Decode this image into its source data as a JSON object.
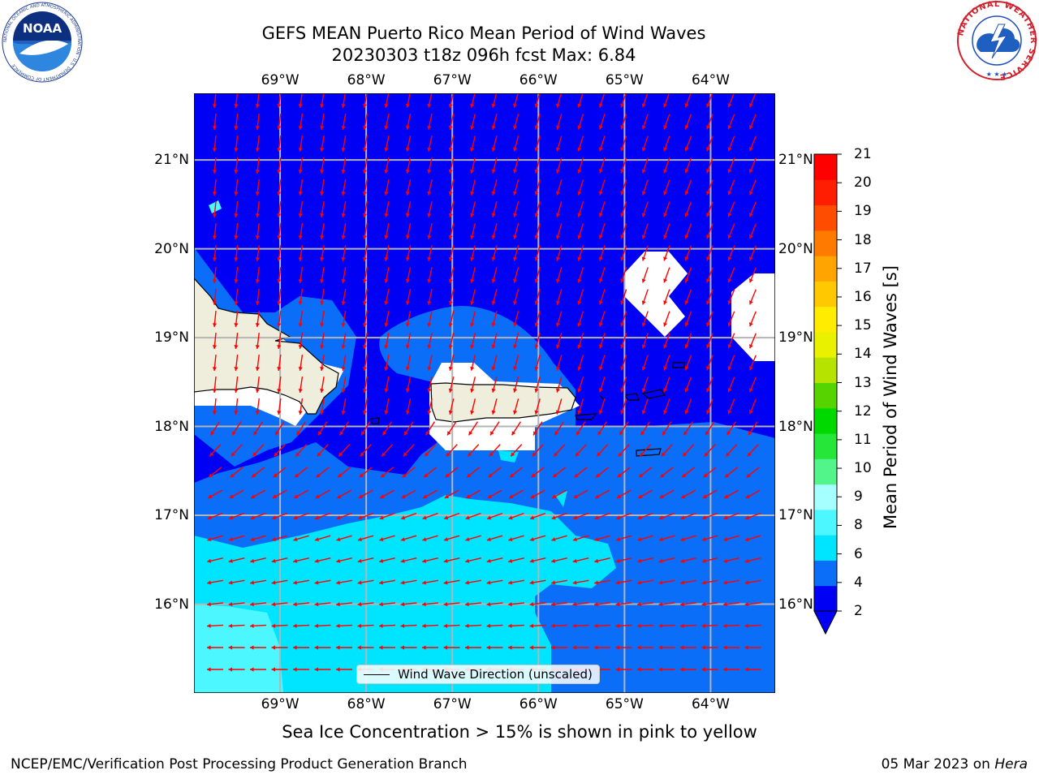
{
  "title": {
    "line1": "GEFS MEAN Puerto Rico Mean Period of Wind Waves",
    "line2": "20230303 t18z 096h fcst   Max: 6.84"
  },
  "axes": {
    "lon_labels": [
      "69°W",
      "68°W",
      "67°W",
      "66°W",
      "65°W",
      "64°W"
    ],
    "lat_labels": [
      "21°N",
      "20°N",
      "19°N",
      "18°N",
      "17°N",
      "16°N"
    ],
    "lon_values": [
      -69,
      -68,
      -67,
      -66,
      -65,
      -64
    ],
    "lat_values": [
      21,
      20,
      19,
      18,
      17,
      16
    ],
    "lon_range": [
      -70.0,
      -63.25
    ],
    "lat_range": [
      15.0,
      21.75
    ]
  },
  "colorbar": {
    "title": "Mean Period of Wind Waves [s]",
    "tick_labels": [
      "2",
      "4",
      "6",
      "8",
      "9",
      "10",
      "11",
      "12",
      "13",
      "14",
      "15",
      "16",
      "17",
      "18",
      "19",
      "20",
      "21"
    ],
    "colors": [
      "#0000f5",
      "#0a6ef8",
      "#00e5ff",
      "#4cf7ff",
      "#a6ffff",
      "#52f58a",
      "#26e63a",
      "#00d900",
      "#56d400",
      "#b6e400",
      "#e9f000",
      "#ffec00",
      "#ffc800",
      "#ffa400",
      "#ff7a00",
      "#ff4d00",
      "#ff1e00",
      "#ff0000"
    ]
  },
  "legend": {
    "label": "Wind Wave Direction (unscaled)"
  },
  "caption": "Sea Ice Concentration > 15% is shown in pink to yellow",
  "footer": {
    "left": "NCEP/EMC/Verification Post Processing Product Generation Branch",
    "right_date": "05 Mar 2023 on ",
    "right_machine": "Hera"
  },
  "logos": {
    "left": "NOAA",
    "left_ring": "NATIONAL OCEANIC AND ATMOSPHERIC ADMINISTRATION · U.S. DEPARTMENT OF COMMERCE",
    "right_ring": "NATIONAL WEATHER SERVICE"
  },
  "colors": {
    "deep_blue": "#0000f5",
    "mid_blue": "#0a6ef8",
    "cyan": "#00e5ff",
    "light_cyan": "#4cf7ff",
    "land": "#efeddc",
    "arrow": "#ff0000",
    "grid": "#b4b4b4"
  }
}
